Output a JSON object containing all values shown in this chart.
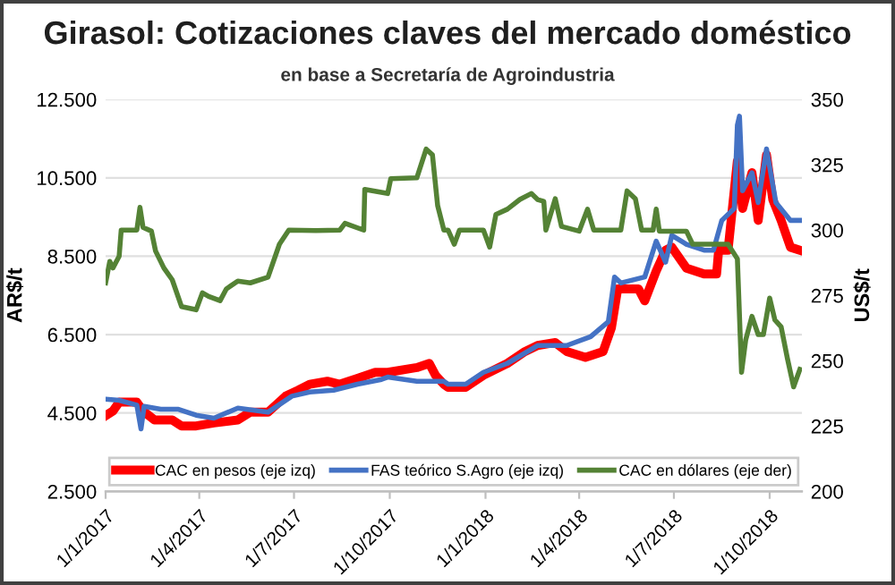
{
  "chart_data": {
    "type": "line",
    "title": "Girasol: Cotizaciones claves del mercado doméstico",
    "subtitle": "en base a Secretaría de Agroindustria",
    "ylabel": "AR$/t",
    "y2label": "US$/t",
    "xlim": [
      "2017-01-01",
      "2018-11-01"
    ],
    "xticks": [
      {
        "value": "2017-01-01",
        "label": "1/1/2017"
      },
      {
        "value": "2017-04-01",
        "label": "1/4/2017"
      },
      {
        "value": "2017-07-01",
        "label": "1/7/2017"
      },
      {
        "value": "2017-10-01",
        "label": "1/10/2017"
      },
      {
        "value": "2018-01-01",
        "label": "1/1/2018"
      },
      {
        "value": "2018-04-01",
        "label": "1/4/2018"
      },
      {
        "value": "2018-07-01",
        "label": "1/7/2018"
      },
      {
        "value": "2018-10-01",
        "label": "1/10/2018"
      }
    ],
    "ylim": [
      2500,
      12500
    ],
    "yticks": [
      {
        "value": 2500,
        "label": "2.500"
      },
      {
        "value": 4500,
        "label": "4.500"
      },
      {
        "value": 6500,
        "label": "6.500"
      },
      {
        "value": 8500,
        "label": "8.500"
      },
      {
        "value": 10500,
        "label": "10.500"
      },
      {
        "value": 12500,
        "label": "12.500"
      }
    ],
    "y2lim": [
      200,
      350
    ],
    "y2ticks": [
      200,
      225,
      250,
      275,
      300,
      325,
      350
    ],
    "grid": "y",
    "legend": "bottom",
    "marker": "none",
    "line_style": "solid",
    "series": [
      {
        "name": "CAC en pesos (eje izq)",
        "color": "#ff0000",
        "x": [
          "2017-01-01",
          "2017-01-08",
          "2017-01-14",
          "2017-01-31",
          "2017-02-06",
          "2017-02-17",
          "2017-03-06",
          "2017-03-15",
          "2017-03-29",
          "2017-04-15",
          "2017-05-08",
          "2017-05-20",
          "2017-06-06",
          "2017-06-23",
          "2017-07-05",
          "2017-07-16",
          "2017-08-02",
          "2017-08-14",
          "2017-08-31",
          "2017-09-17",
          "2017-09-29",
          "2017-10-27",
          "2017-11-08",
          "2017-11-14",
          "2017-11-22",
          "2017-11-26",
          "2017-12-13",
          "2017-12-30",
          "2018-01-22",
          "2018-02-08",
          "2018-02-20",
          "2018-03-09",
          "2018-03-20",
          "2018-04-07",
          "2018-04-24",
          "2018-05-02",
          "2018-05-08",
          "2018-05-28",
          "2018-06-03",
          "2018-06-14",
          "2018-06-23",
          "2018-06-29",
          "2018-07-13",
          "2018-07-30",
          "2018-08-11",
          "2018-08-13",
          "2018-08-22",
          "2018-08-31",
          "2018-09-05",
          "2018-09-14",
          "2018-09-20",
          "2018-09-28",
          "2018-10-04",
          "2018-10-12",
          "2018-10-21",
          "2018-10-30"
        ],
        "values": [
          4429,
          4550,
          4778,
          4778,
          4550,
          4322,
          4322,
          4170,
          4170,
          4246,
          4322,
          4520,
          4520,
          4930,
          5082,
          5234,
          5310,
          5234,
          5386,
          5538,
          5538,
          5660,
          5766,
          5462,
          5234,
          5158,
          5158,
          5462,
          5766,
          6070,
          6222,
          6298,
          6070,
          5918,
          6070,
          6678,
          7666,
          7666,
          7362,
          8122,
          8654,
          8730,
          8198,
          8046,
          8046,
          8654,
          8654,
          10934,
          9718,
          10630,
          9414,
          11086,
          9946,
          9414,
          8730,
          8654
        ]
      },
      {
        "name": "FAS teórico S.Agro (eje izq)",
        "color": "#4472c4",
        "x": [
          "2017-01-01",
          "2017-01-14",
          "2017-01-31",
          "2017-02-04",
          "2017-02-07",
          "2017-02-23",
          "2017-03-12",
          "2017-03-29",
          "2017-04-15",
          "2017-05-08",
          "2017-06-06",
          "2017-06-29",
          "2017-07-16",
          "2017-08-08",
          "2017-08-31",
          "2017-09-23",
          "2017-09-29",
          "2017-10-27",
          "2017-11-22",
          "2017-11-26",
          "2017-12-13",
          "2017-12-30",
          "2018-01-22",
          "2018-02-20",
          "2018-03-20",
          "2018-04-12",
          "2018-04-29",
          "2018-05-05",
          "2018-05-11",
          "2018-06-03",
          "2018-06-14",
          "2018-06-23",
          "2018-06-29",
          "2018-07-13",
          "2018-07-30",
          "2018-08-08",
          "2018-08-16",
          "2018-08-28",
          "2018-08-31",
          "2018-09-02",
          "2018-09-05",
          "2018-09-14",
          "2018-09-20",
          "2018-09-28",
          "2018-10-07",
          "2018-10-21",
          "2018-10-30"
        ],
        "values": [
          4854,
          4824,
          4702,
          4094,
          4672,
          4596,
          4596,
          4444,
          4368,
          4626,
          4520,
          4930,
          5037,
          5082,
          5234,
          5356,
          5416,
          5310,
          5310,
          5234,
          5234,
          5538,
          5766,
          6222,
          6222,
          6450,
          6830,
          7970,
          7818,
          7970,
          8882,
          8350,
          9034,
          8806,
          8654,
          8654,
          9414,
          9718,
          11846,
          12074,
          10174,
          10630,
          9870,
          11238,
          9870,
          9414,
          9414
        ]
      },
      {
        "name": "CAC en dólares (eje der)",
        "color": "#548235",
        "axis": "y2",
        "x": [
          "2017-01-01",
          "2017-01-05",
          "2017-01-08",
          "2017-01-14",
          "2017-01-16",
          "2017-01-31",
          "2017-02-03",
          "2017-02-06",
          "2017-02-14",
          "2017-02-18",
          "2017-02-26",
          "2017-03-06",
          "2017-03-15",
          "2017-03-29",
          "2017-04-04",
          "2017-04-10",
          "2017-04-21",
          "2017-04-27",
          "2017-05-08",
          "2017-05-20",
          "2017-06-06",
          "2017-06-17",
          "2017-06-26",
          "2017-07-22",
          "2017-08-14",
          "2017-08-19",
          "2017-09-06",
          "2017-09-07",
          "2017-09-29",
          "2017-10-02",
          "2017-10-27",
          "2017-11-05",
          "2017-11-11",
          "2017-11-16",
          "2017-11-22",
          "2017-11-26",
          "2017-12-02",
          "2017-12-07",
          "2017-12-30",
          "2018-01-05",
          "2018-01-11",
          "2018-01-22",
          "2018-02-03",
          "2018-02-14",
          "2018-02-20",
          "2018-02-26",
          "2018-02-28",
          "2018-03-09",
          "2018-03-15",
          "2018-04-01",
          "2018-04-09",
          "2018-04-15",
          "2018-05-11",
          "2018-05-17",
          "2018-05-25",
          "2018-05-31",
          "2018-06-11",
          "2018-06-14",
          "2018-06-17",
          "2018-07-13",
          "2018-07-19",
          "2018-08-22",
          "2018-08-31",
          "2018-09-04",
          "2018-09-08",
          "2018-09-14",
          "2018-09-20",
          "2018-09-25",
          "2018-10-01",
          "2018-10-06",
          "2018-10-12",
          "2018-10-18",
          "2018-10-24",
          "2018-10-30"
        ],
        "values": [
          279.8,
          288,
          285.5,
          290,
          300,
          300,
          308.7,
          301,
          299.6,
          292,
          285.5,
          281,
          270.7,
          269.5,
          276,
          274.6,
          273,
          277.5,
          280.5,
          279.8,
          282,
          294.6,
          300,
          299.8,
          300,
          302.6,
          300,
          315.6,
          314,
          319.7,
          320,
          331,
          328.8,
          309.4,
          300,
          300,
          294.6,
          300,
          300,
          293.5,
          306,
          308,
          311.7,
          314,
          311.7,
          311,
          300,
          312,
          301.4,
          299.6,
          308,
          300,
          300,
          315,
          312,
          300,
          300,
          308,
          299.6,
          299.6,
          294.6,
          294.6,
          289,
          245.6,
          258,
          267,
          260,
          260,
          274,
          265.6,
          263,
          251,
          240,
          246.7
        ]
      }
    ]
  }
}
